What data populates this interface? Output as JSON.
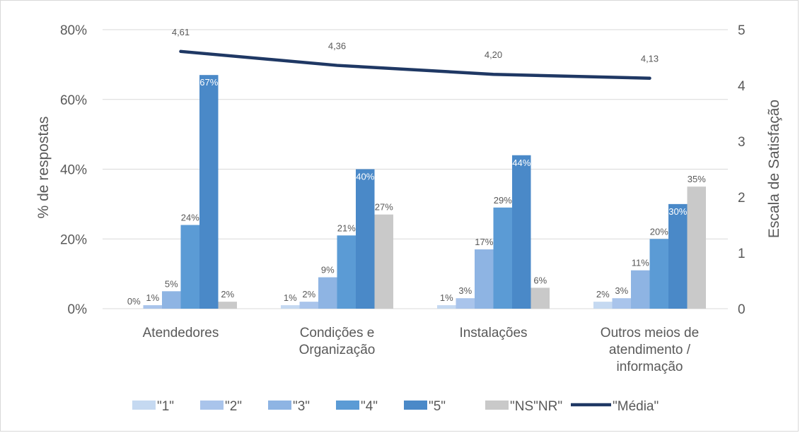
{
  "chart_data": {
    "type": "bar",
    "categories": [
      [
        "Atendedores"
      ],
      [
        "Condições e",
        "Organização"
      ],
      [
        "Instalações"
      ],
      [
        "Outros meios de",
        "atendimento /",
        "informação"
      ]
    ],
    "series": [
      {
        "name": "\"1\"",
        "color": "#c5d9f1",
        "values": [
          0,
          1,
          1,
          2
        ],
        "labels": [
          "0%",
          "1%",
          "1%",
          "2%"
        ]
      },
      {
        "name": "\"2\"",
        "color": "#a9c4eb",
        "values": [
          1,
          2,
          3,
          3
        ],
        "labels": [
          "1%",
          "2%",
          "3%",
          "3%"
        ]
      },
      {
        "name": "\"3\"",
        "color": "#8eb4e3",
        "values": [
          5,
          9,
          17,
          11
        ],
        "labels": [
          "5%",
          "9%",
          "17%",
          "11%"
        ]
      },
      {
        "name": "\"4\"",
        "color": "#5b9bd5",
        "values": [
          24,
          21,
          29,
          20
        ],
        "labels": [
          "24%",
          "21%",
          "29%",
          "20%"
        ]
      },
      {
        "name": "\"5\"",
        "color": "#4a89c8",
        "values": [
          67,
          40,
          44,
          30
        ],
        "labels": [
          "67%",
          "40%",
          "44%",
          "30%"
        ]
      },
      {
        "name": "\"NS\"NR\"",
        "color": "#c9c9c9",
        "values": [
          2,
          27,
          6,
          35
        ],
        "labels": [
          "2%",
          "27%",
          "6%",
          "35%"
        ]
      }
    ],
    "line_series": {
      "name": "\"Média\"",
      "color": "#1f3864",
      "values": [
        4.61,
        4.36,
        4.2,
        4.13
      ],
      "labels": [
        "4,61",
        "4,36",
        "4,20",
        "4,13"
      ]
    },
    "ylabel": "% de respostas",
    "y2label": "Escala de Satisfação",
    "ylim": [
      0,
      80
    ],
    "y2lim": [
      0,
      5
    ],
    "yticks": [
      "0%",
      "20%",
      "40%",
      "60%",
      "80%"
    ],
    "y2ticks": [
      "0",
      "1",
      "2",
      "3",
      "4",
      "5"
    ],
    "grid": true,
    "legend_position": "bottom"
  }
}
